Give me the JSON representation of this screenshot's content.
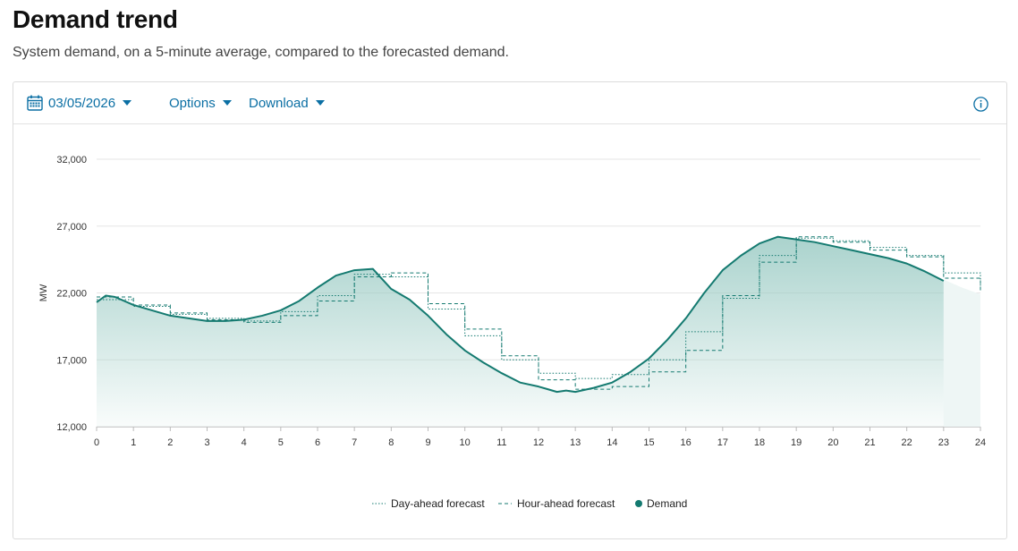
{
  "header": {
    "title": "Demand trend",
    "subtitle": "System demand, on a 5-minute average, compared to the forecasted demand."
  },
  "toolbar": {
    "date": "03/05/2026",
    "options_label": "Options",
    "download_label": "Download",
    "info_icon": "info-icon",
    "calendar_icon": "calendar-icon",
    "accent_color": "#0b6fa4"
  },
  "chart_data": {
    "type": "area",
    "ylabel": "MW",
    "xlabel": "",
    "xlim": [
      0,
      24
    ],
    "ylim": [
      12000,
      32000
    ],
    "x_ticks": [
      0,
      1,
      2,
      3,
      4,
      5,
      6,
      7,
      8,
      9,
      10,
      11,
      12,
      13,
      14,
      15,
      16,
      17,
      18,
      19,
      20,
      21,
      22,
      23,
      24
    ],
    "y_ticks": [
      12000,
      17000,
      22000,
      27000,
      32000
    ],
    "y_tick_labels": [
      "12,000",
      "17,000",
      "22,000",
      "27,000",
      "32,000"
    ],
    "grid": "horizontal",
    "legend_position": "bottom-center",
    "colors": {
      "line": "#147a70",
      "fill": "#9bcbc4",
      "forecast_fill": "#eef6f5"
    },
    "series": [
      {
        "name": "Day-ahead forecast",
        "style": "dotted",
        "step": true,
        "x": [
          0,
          1,
          2,
          3,
          4,
          5,
          6,
          7,
          8,
          9,
          10,
          11,
          12,
          13,
          14,
          15,
          16,
          17,
          18,
          19,
          20,
          21,
          22,
          23,
          24
        ],
        "y": [
          21500,
          21000,
          20400,
          20100,
          19900,
          20600,
          21800,
          23400,
          23200,
          20800,
          18800,
          17000,
          16000,
          15600,
          15900,
          17000,
          19100,
          21600,
          24800,
          26100,
          25900,
          25400,
          24800,
          23500,
          22200
        ]
      },
      {
        "name": "Hour-ahead forecast",
        "style": "dashed",
        "step": true,
        "x": [
          0,
          1,
          2,
          3,
          4,
          5,
          6,
          7,
          8,
          9,
          10,
          11,
          12,
          13,
          14,
          15,
          16,
          17,
          18,
          19,
          20,
          21,
          22,
          23,
          24
        ],
        "y": [
          21700,
          21100,
          20500,
          20000,
          19800,
          20300,
          21400,
          23200,
          23500,
          21200,
          19300,
          17300,
          15500,
          14800,
          15000,
          16100,
          17700,
          21800,
          24300,
          26200,
          25800,
          25200,
          24700,
          23100,
          22200
        ]
      },
      {
        "name": "Demand",
        "style": "solid",
        "x": [
          0,
          0.25,
          0.5,
          1,
          1.5,
          2,
          2.5,
          3,
          3.5,
          4,
          4.5,
          5,
          5.5,
          6,
          6.5,
          7,
          7.5,
          8,
          8.5,
          9,
          9.5,
          10,
          10.5,
          11,
          11.5,
          12,
          12.25,
          12.5,
          12.75,
          13,
          13.5,
          14,
          14.5,
          15,
          15.5,
          16,
          16.5,
          17,
          17.5,
          18,
          18.5,
          19,
          19.5,
          20,
          20.5,
          21,
          21.5,
          22,
          22.5,
          23
        ],
        "y": [
          21300,
          21800,
          21700,
          21100,
          20700,
          20300,
          20100,
          19900,
          19900,
          20000,
          20300,
          20700,
          21400,
          22400,
          23300,
          23700,
          23800,
          22300,
          21500,
          20300,
          18900,
          17700,
          16800,
          16000,
          15300,
          15000,
          14800,
          14600,
          14700,
          14600,
          14900,
          15300,
          16100,
          17100,
          18500,
          20100,
          22000,
          23700,
          24800,
          25700,
          26200,
          26000,
          25800,
          25500,
          25200,
          24900,
          24600,
          24200,
          23600,
          22900
        ]
      }
    ],
    "forecast_tail": {
      "x": [
        23,
        23.5,
        24
      ],
      "y": [
        23000,
        22400,
        21900
      ]
    }
  }
}
